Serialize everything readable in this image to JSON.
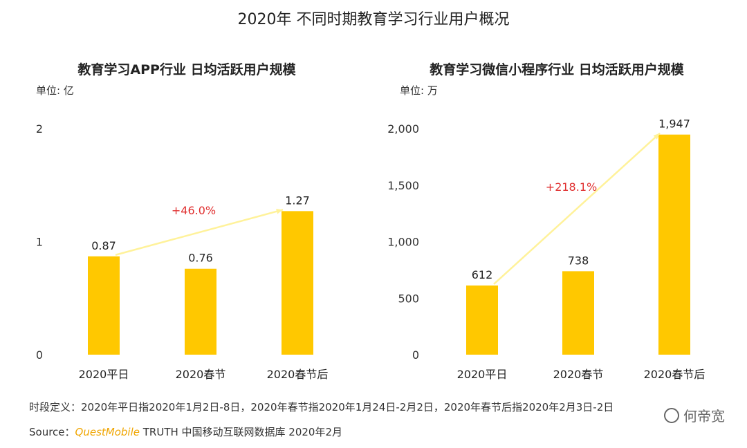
{
  "page": {
    "title": "2020年 不同时期教育学习行业用户概况",
    "footer_definition": "时段定义：2020年平日指2020年1月2日-8日，2020年春节指2020年1月24日-2月2日，2020年春节后指2020年2月3日-2日",
    "footer_source_prefix": "Source：",
    "footer_source_brand": "QuestMobile",
    "footer_source_rest": " TRUTH 中国移动互联网数据库 2020年2月",
    "watermark_text": "何帝宽",
    "colors": {
      "bar": "#ffc800",
      "trend": "#fff29a",
      "growth_label": "#e03030"
    }
  },
  "chart_data": [
    {
      "type": "bar",
      "title": "教育学习APP行业 日均活跃用户规模",
      "unit": "单位: 亿",
      "categories": [
        "2020平日",
        "2020春节",
        "2020春节后"
      ],
      "values": [
        0.87,
        0.76,
        1.27
      ],
      "value_labels": [
        "0.87",
        "0.76",
        "1.27"
      ],
      "ylim": [
        0,
        2
      ],
      "yticks": [
        0,
        1,
        2
      ],
      "ytick_labels": [
        "0",
        "1",
        "2"
      ],
      "trend": {
        "from": 0,
        "to": 2,
        "label": "+46.0%"
      }
    },
    {
      "type": "bar",
      "title": "教育学习微信小程序行业 日均活跃用户规模",
      "unit": "单位: 万",
      "categories": [
        "2020平日",
        "2020春节",
        "2020春节后"
      ],
      "values": [
        612,
        738,
        1947
      ],
      "value_labels": [
        "612",
        "738",
        "1,947"
      ],
      "ylim": [
        0,
        2000
      ],
      "yticks": [
        0,
        500,
        1000,
        1500,
        2000
      ],
      "ytick_labels": [
        "0",
        "500",
        "1,000",
        "1,500",
        "2,000"
      ],
      "trend": {
        "from": 0,
        "to": 2,
        "label": "+218.1%"
      }
    }
  ]
}
